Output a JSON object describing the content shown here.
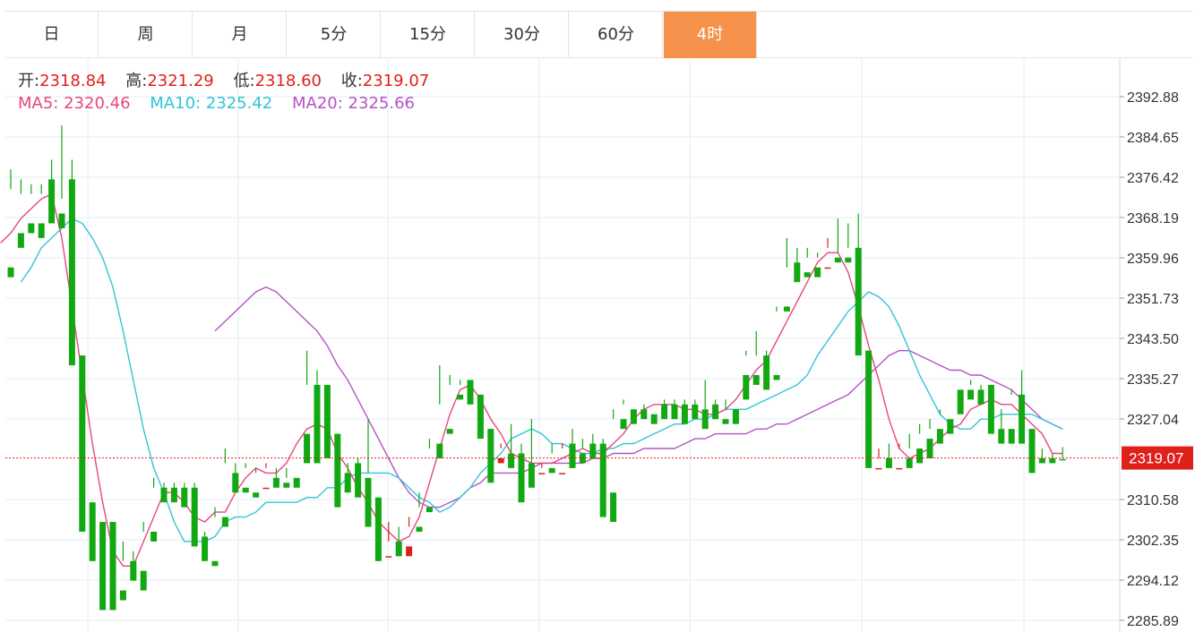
{
  "tabs": [
    {
      "label": "日",
      "active": false
    },
    {
      "label": "周",
      "active": false
    },
    {
      "label": "月",
      "active": false
    },
    {
      "label": "5分",
      "active": false
    },
    {
      "label": "15分",
      "active": false
    },
    {
      "label": "30分",
      "active": false
    },
    {
      "label": "60分",
      "active": false
    },
    {
      "label": "4时",
      "active": true
    }
  ],
  "ohlc": {
    "open_label": "开:",
    "open": "2318.84",
    "high_label": "高:",
    "high": "2321.29",
    "low_label": "低:",
    "low": "2318.60",
    "close_label": "收:",
    "close": "2319.07"
  },
  "ma": {
    "ma5_label": "MA5:",
    "ma5": "2320.46",
    "ma10_label": "MA10:",
    "ma10": "2325.42",
    "ma20_label": "MA20:",
    "ma20": "2325.66"
  },
  "colors": {
    "up": "#e0201b",
    "down": "#12a812",
    "ma5": "#e8477b",
    "ma10": "#33c4d6",
    "ma20": "#b454c4",
    "grid": "#e6edf5",
    "current_price": "#e0201b",
    "tab_active": "#f5914a"
  },
  "chart_data": {
    "type": "candlestick",
    "title": "",
    "xlabel": "",
    "ylabel": "",
    "y_ticks": [
      2392.88,
      2384.65,
      2376.42,
      2368.19,
      2359.96,
      2351.73,
      2343.5,
      2335.27,
      2327.04,
      2310.58,
      2302.35,
      2294.12,
      2285.89
    ],
    "current_price": 2319.07,
    "current_price_label": "2319.07",
    "grid": true,
    "candles": [
      [
        2358,
        2378,
        2374,
        2356
      ],
      [
        2365,
        2376,
        2373,
        2362
      ],
      [
        2367,
        2375,
        2373,
        2365
      ],
      [
        2367,
        2375,
        2373,
        2364
      ],
      [
        2376,
        2380,
        2369,
        2367
      ],
      [
        2369,
        2387,
        2372,
        2366
      ],
      [
        2376,
        2380,
        2340,
        2338
      ],
      [
        2340,
        2340,
        2309,
        2304
      ],
      [
        2310,
        2310,
        2306,
        2298
      ],
      [
        2306,
        2306,
        2291,
        2288
      ],
      [
        2306,
        2306,
        2292,
        2288
      ],
      [
        2292,
        2302,
        2298,
        2290
      ],
      [
        2298,
        2300,
        2296,
        2294
      ],
      [
        2296,
        2306,
        2304,
        2292
      ],
      [
        2304,
        2315,
        2313,
        2302
      ],
      [
        2313,
        2314,
        2312,
        2310
      ],
      [
        2313,
        2314,
        2312,
        2310
      ],
      [
        2313,
        2314,
        2312,
        2309
      ],
      [
        2313,
        2314,
        2302,
        2301
      ],
      [
        2303,
        2304,
        2299,
        2298
      ],
      [
        2298,
        2309,
        2307,
        2297
      ],
      [
        2307,
        2321,
        2318,
        2305
      ],
      [
        2316,
        2318,
        2313,
        2312
      ],
      [
        2313,
        2318,
        2317,
        2312
      ],
      [
        2312,
        2317,
        2316,
        2311
      ],
      [
        2313,
        2318,
        2317,
        2313
      ],
      [
        2315,
        2317,
        2315,
        2313
      ],
      [
        2314,
        2317,
        2315,
        2313
      ],
      [
        2315,
        2330,
        2330,
        2313
      ],
      [
        2324,
        2341,
        2334,
        2318
      ],
      [
        2334,
        2337,
        2324,
        2318
      ],
      [
        2334,
        2334,
        2322,
        2319
      ],
      [
        2324,
        2324,
        2312,
        2309
      ],
      [
        2316,
        2318,
        2315,
        2312
      ],
      [
        2318,
        2319,
        2314,
        2311
      ],
      [
        2315,
        2327,
        2316,
        2305
      ],
      [
        2311,
        2311,
        2302,
        2298
      ],
      [
        2299,
        2306,
        2302,
        2299
      ],
      [
        2302,
        2305,
        2299,
        2299
      ],
      [
        2299,
        2307,
        2305,
        2301
      ],
      [
        2305,
        2312,
        2309,
        2304
      ],
      [
        2309,
        2323,
        2321,
        2308
      ],
      [
        2322,
        2338,
        2330,
        2319
      ],
      [
        2325,
        2336,
        2334,
        2324
      ],
      [
        2332,
        2335,
        2334,
        2331
      ],
      [
        2335,
        2335,
        2332,
        2330
      ],
      [
        2332,
        2332,
        2325,
        2323
      ],
      [
        2325,
        2325,
        2318,
        2314
      ],
      [
        2318,
        2322,
        2321,
        2319
      ],
      [
        2320,
        2326,
        2320,
        2317
      ],
      [
        2320,
        2322,
        2316,
        2310
      ],
      [
        2318,
        2327,
        2317,
        2313
      ],
      [
        2316,
        2318,
        2317,
        2316
      ],
      [
        2317,
        2322,
        2320,
        2316
      ],
      [
        2316,
        2322,
        2321,
        2316
      ],
      [
        2322,
        2325,
        2321,
        2317
      ],
      [
        2320,
        2323,
        2321,
        2318
      ],
      [
        2322,
        2324,
        2322,
        2319
      ],
      [
        2322,
        2323,
        2312,
        2307
      ],
      [
        2312,
        2329,
        2327,
        2306
      ],
      [
        2327,
        2331,
        2330,
        2325
      ],
      [
        2329,
        2329,
        2328,
        2326
      ],
      [
        2329,
        2330,
        2329,
        2327
      ],
      [
        2328,
        2329,
        2329,
        2326
      ],
      [
        2330,
        2331,
        2330,
        2327
      ],
      [
        2330,
        2331,
        2330,
        2327
      ],
      [
        2330,
        2331,
        2328,
        2326
      ],
      [
        2330,
        2331,
        2330,
        2327
      ],
      [
        2329,
        2335,
        2329,
        2325
      ],
      [
        2330,
        2331,
        2329,
        2327
      ],
      [
        2327,
        2331,
        2329,
        2326
      ],
      [
        2329,
        2336,
        2336,
        2326
      ],
      [
        2336,
        2341,
        2340,
        2331
      ],
      [
        2336,
        2345,
        2340,
        2334
      ],
      [
        2340,
        2341,
        2335,
        2333
      ],
      [
        2336,
        2350,
        2349,
        2335
      ],
      [
        2350,
        2364,
        2358,
        2349
      ],
      [
        2359,
        2362,
        2357,
        2355
      ],
      [
        2357,
        2362,
        2360,
        2356
      ],
      [
        2358,
        2361,
        2360,
        2356
      ],
      [
        2358,
        2364,
        2362,
        2358
      ],
      [
        2360,
        2368,
        2361,
        2359
      ],
      [
        2360,
        2367,
        2362,
        2359
      ],
      [
        2362,
        2369,
        2341,
        2340
      ],
      [
        2341,
        2341,
        2321,
        2317
      ],
      [
        2317,
        2321,
        2319,
        2317
      ],
      [
        2319,
        2322,
        2318,
        2317
      ],
      [
        2317,
        2322,
        2321,
        2317
      ],
      [
        2319,
        2324,
        2321,
        2317
      ],
      [
        2321,
        2326,
        2324,
        2318
      ],
      [
        2323,
        2327,
        2325,
        2319
      ],
      [
        2325,
        2329,
        2328,
        2322
      ],
      [
        2327,
        2333,
        2333,
        2324
      ],
      [
        2333,
        2333,
        2332,
        2328
      ],
      [
        2333,
        2335,
        2334,
        2331
      ],
      [
        2333,
        2334,
        2333,
        2330
      ],
      [
        2334,
        2334,
        2325,
        2324
      ],
      [
        2325,
        2329,
        2325,
        2322
      ],
      [
        2325,
        2333,
        2332,
        2322
      ],
      [
        2332,
        2337,
        2325,
        2322
      ],
      [
        2325,
        2325,
        2319,
        2316
      ],
      [
        2319,
        2321,
        2319,
        2318
      ],
      [
        2319,
        2320,
        2319,
        2318
      ],
      [
        2318.84,
        2321.29,
        2319.07,
        2318.6
      ]
    ],
    "ma5": [
      [
        2363,
        2365,
        2368,
        2370,
        2372,
        2373,
        2364,
        2350,
        2336,
        2322,
        2310,
        2300,
        2297,
        2297,
        2302,
        2307,
        2312,
        2312,
        2310,
        2307,
        2306,
        2308,
        2308,
        2312,
        2315,
        2317,
        2316,
        2316,
        2318,
        2322,
        2325,
        2326,
        2325,
        2320,
        2317,
        2313,
        2310,
        2306,
        2304,
        2302,
        2303,
        2307,
        2314,
        2321,
        2328,
        2333,
        2334,
        2331,
        2327,
        2324,
        2320,
        2319,
        2318,
        2318,
        2318,
        2319,
        2320,
        2321,
        2320,
        2320,
        2322,
        2324,
        2327,
        2329,
        2330,
        2330,
        2330,
        2329,
        2329,
        2328,
        2328,
        2329,
        2331,
        2334,
        2337,
        2339,
        2343,
        2347,
        2351,
        2355,
        2359,
        2361,
        2361,
        2357,
        2350,
        2342,
        2335,
        2327,
        2321,
        2319,
        2320,
        2321,
        2323,
        2325,
        2326,
        2329,
        2330,
        2331,
        2330,
        2330,
        2328,
        2326,
        2324,
        2320,
        2320
      ]
    ],
    "ma10": [
      [
        2355,
        2358,
        2362,
        2364,
        2366,
        2368,
        2367,
        2364,
        2360,
        2354,
        2345,
        2335,
        2325,
        2317,
        2312,
        2306,
        2302,
        2302,
        2302,
        2303,
        2306,
        2307,
        2307,
        2308,
        2310,
        2310,
        2310,
        2310,
        2311,
        2311,
        2313,
        2313,
        2315,
        2316,
        2316,
        2316,
        2316,
        2315,
        2313,
        2311,
        2310,
        2308,
        2309,
        2311,
        2313,
        2316,
        2318,
        2320,
        2323,
        2324,
        2325,
        2324,
        2322,
        2322,
        2321,
        2320,
        2320,
        2321,
        2321,
        2322,
        2322,
        2323,
        2324,
        2325,
        2326,
        2326,
        2327,
        2327,
        2328,
        2329,
        2329,
        2329,
        2330,
        2331,
        2332,
        2333,
        2334,
        2336,
        2340,
        2343,
        2346,
        2349,
        2351,
        2353,
        2352,
        2350,
        2346,
        2341,
        2336,
        2332,
        2328,
        2326,
        2325,
        2325,
        2327,
        2327,
        2328,
        2328,
        2328,
        2328,
        2327,
        2326,
        2325
      ]
    ],
    "ma20": [
      [
        2345,
        2347,
        2349,
        2351,
        2353,
        2354,
        2353,
        2351,
        2349,
        2347,
        2345,
        2342,
        2338,
        2335,
        2331,
        2327,
        2323,
        2319,
        2315,
        2312,
        2310,
        2309,
        2309,
        2310,
        2311,
        2313,
        2314,
        2316,
        2316,
        2316,
        2316,
        2317,
        2318,
        2318,
        2318,
        2318,
        2318,
        2319,
        2319,
        2320,
        2320,
        2320,
        2321,
        2321,
        2321,
        2321,
        2322,
        2323,
        2323,
        2324,
        2324,
        2324,
        2324,
        2325,
        2325,
        2326,
        2326,
        2327,
        2328,
        2329,
        2330,
        2331,
        2332,
        2334,
        2336,
        2338,
        2340,
        2341,
        2341,
        2340,
        2339,
        2338,
        2337,
        2337,
        2336,
        2336,
        2335,
        2334,
        2333,
        2331,
        2329,
        2327,
        2326,
        2325
      ]
    ]
  }
}
